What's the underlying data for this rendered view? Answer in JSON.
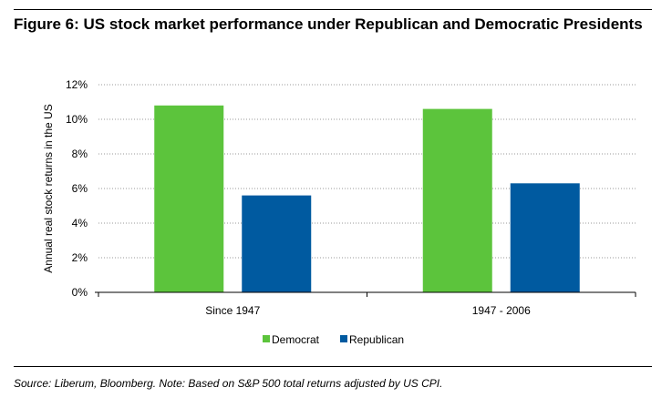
{
  "figure": {
    "title": "Figure 6: US stock market performance under Republican and Democratic Presidents",
    "source": "Source: Liberum, Bloomberg. Note: Based on S&P 500 total returns adjusted by US CPI."
  },
  "chart_data": {
    "type": "bar",
    "title": "Figure 6: US stock market performance under Republican and Democratic Presidents",
    "xlabel": "",
    "ylabel": "Annual real stock returns in the US",
    "categories": [
      "Since 1947",
      "1947 - 2006"
    ],
    "series": [
      {
        "name": "Democrat",
        "values": [
          10.8,
          10.6
        ],
        "color": "#5cc43c"
      },
      {
        "name": "Republican",
        "values": [
          5.6,
          6.3
        ],
        "color": "#005aa0"
      }
    ],
    "ylim": [
      0,
      12
    ],
    "yticks": [
      0,
      2,
      4,
      6,
      8,
      10,
      12
    ],
    "ytick_labels": [
      "0%",
      "2%",
      "4%",
      "6%",
      "8%",
      "10%",
      "12%"
    ],
    "grid": true,
    "legend": "bottom-center"
  }
}
